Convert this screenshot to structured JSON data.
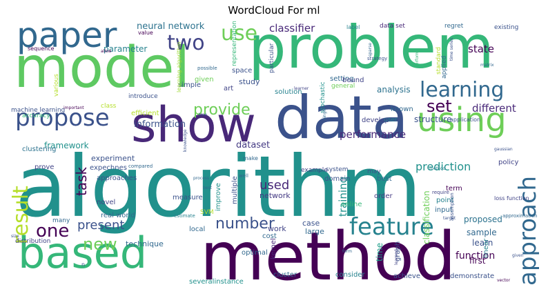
{
  "title": "WordCloud For ml",
  "words": [
    {
      "text": "algorithm",
      "color": "#21918c"
    },
    {
      "text": "method",
      "color": "#440154"
    },
    {
      "text": "model",
      "color": "#5ec962"
    },
    {
      "text": "problem",
      "color": "#35b779"
    },
    {
      "text": "data",
      "color": "#3b528b"
    },
    {
      "text": "show",
      "color": "#482878"
    },
    {
      "text": "based",
      "color": "#35b779"
    },
    {
      "text": "paper",
      "color": "#31688e"
    },
    {
      "text": "using",
      "color": "#6ece58"
    },
    {
      "text": "learning",
      "color": "#31688e"
    },
    {
      "text": "propose",
      "color": "#3b528b"
    },
    {
      "text": "feature",
      "color": "#26828e"
    },
    {
      "text": "approach",
      "color": "#31688e"
    },
    {
      "text": "result",
      "color": "#b5de2b"
    },
    {
      "text": "use",
      "color": "#6ece58"
    },
    {
      "text": "two",
      "color": "#414487"
    },
    {
      "text": "one",
      "color": "#440154"
    },
    {
      "text": "set",
      "color": "#440154"
    },
    {
      "text": "number",
      "color": "#3b528b"
    },
    {
      "text": "provide",
      "color": "#6ece58"
    },
    {
      "text": "present",
      "color": "#3b528b"
    },
    {
      "text": "new",
      "color": "#6ece58"
    },
    {
      "text": "task",
      "color": "#440154"
    },
    {
      "text": "classifier",
      "color": "#482878"
    },
    {
      "text": "state",
      "color": "#440154"
    },
    {
      "text": "different",
      "color": "#482878"
    },
    {
      "text": "performance",
      "color": "#482878"
    },
    {
      "text": "dataset",
      "color": "#443a83"
    },
    {
      "text": "prediction",
      "color": "#21918c"
    },
    {
      "text": "used",
      "color": "#482878"
    },
    {
      "text": "training",
      "color": "#21918c"
    },
    {
      "text": "neural network",
      "color": "#2c728e"
    },
    {
      "text": "framework",
      "color": "#21918c"
    },
    {
      "text": "information",
      "color": "#3b528b"
    },
    {
      "text": "parameter",
      "color": "#26828e"
    },
    {
      "text": "analysis",
      "color": "#2c728e"
    },
    {
      "text": "structure",
      "color": "#3b528b"
    },
    {
      "text": "function",
      "color": "#440154"
    },
    {
      "text": "classification",
      "color": "#6ece58"
    },
    {
      "text": "proposed",
      "color": "#2c728e"
    },
    {
      "text": "sample",
      "color": "#31688e"
    },
    {
      "text": "learn",
      "color": "#3b528b"
    },
    {
      "text": "first",
      "color": "#440154"
    },
    {
      "text": "technique",
      "color": "#31688e"
    },
    {
      "text": "time",
      "color": "#1f9e89"
    },
    {
      "text": "study",
      "color": "#3b528b"
    },
    {
      "text": "network",
      "color": "#443a83"
    },
    {
      "text": "work",
      "color": "#414487"
    },
    {
      "text": "case",
      "color": "#3b528b"
    },
    {
      "text": "large",
      "color": "#31688e"
    },
    {
      "text": "experiment",
      "color": "#3b528b"
    },
    {
      "text": "real world",
      "color": "#31688e"
    },
    {
      "text": "data set",
      "color": "#482878"
    },
    {
      "text": "regret",
      "color": "#31688e"
    },
    {
      "text": "sequence",
      "color": "#440154"
    },
    {
      "text": "label",
      "color": "#26828e"
    },
    {
      "text": "value",
      "color": "#440154"
    },
    {
      "text": "space",
      "color": "#3b528b"
    },
    {
      "text": "art",
      "color": "#414487"
    },
    {
      "text": "simple",
      "color": "#3b528b"
    },
    {
      "text": "given",
      "color": "#6ece58"
    },
    {
      "text": "introduce",
      "color": "#3b528b"
    },
    {
      "text": "setting",
      "color": "#31688e"
    },
    {
      "text": "solution",
      "color": "#26828e"
    },
    {
      "text": "bound",
      "color": "#414487"
    },
    {
      "text": "general",
      "color": "#6ece58"
    },
    {
      "text": "stochastic",
      "color": "#21918c"
    },
    {
      "text": "known",
      "color": "#31688e"
    },
    {
      "text": "develop",
      "color": "#414487"
    },
    {
      "text": "user",
      "color": "#26828e"
    },
    {
      "text": "machine learning",
      "color": "#3b528b"
    },
    {
      "text": "class",
      "color": "#b5de2b"
    },
    {
      "text": "efficient",
      "color": "#b5de2b"
    },
    {
      "text": "accuracy",
      "color": "#35b779"
    },
    {
      "text": "clustering",
      "color": "#2c728e"
    },
    {
      "text": "prove",
      "color": "#414487"
    },
    {
      "text": "expechnes",
      "color": "#3b528b"
    },
    {
      "text": "approaches",
      "color": "#3b528b"
    },
    {
      "text": "many",
      "color": "#31688e"
    },
    {
      "text": "distribution",
      "color": "#414487"
    },
    {
      "text": "novel",
      "color": "#414487"
    },
    {
      "text": "measure",
      "color": "#3b528b"
    },
    {
      "text": "improve",
      "color": "#21918c"
    },
    {
      "text": "multiple",
      "color": "#3b528b"
    },
    {
      "text": "domain",
      "color": "#3b528b"
    },
    {
      "text": "system",
      "color": "#3b528b"
    },
    {
      "text": "example",
      "color": "#414487"
    },
    {
      "text": "may",
      "color": "#3b528b"
    },
    {
      "text": "best",
      "color": "#31688e"
    },
    {
      "text": "order",
      "color": "#443a83"
    },
    {
      "text": "policy",
      "color": "#414487"
    },
    {
      "text": "point",
      "color": "#26828e"
    },
    {
      "text": "input",
      "color": "#31688e"
    },
    {
      "text": "linear",
      "color": "#26828e"
    },
    {
      "text": "term",
      "color": "#440154"
    },
    {
      "text": "optimal",
      "color": "#31688e"
    },
    {
      "text": "kernel",
      "color": "#482878"
    },
    {
      "text": "graph",
      "color": "#3b528b"
    },
    {
      "text": "local",
      "color": "#31688e"
    },
    {
      "text": "cost",
      "color": "#31688e"
    },
    {
      "text": "online",
      "color": "#35b779"
    },
    {
      "text": "cluster",
      "color": "#31688e"
    },
    {
      "text": "consider",
      "color": "#26828e"
    },
    {
      "text": "achieve",
      "color": "#3b528b"
    },
    {
      "text": "demonstrate",
      "color": "#3b528b"
    },
    {
      "text": "severalinstance",
      "color": "#21918c"
    },
    {
      "text": "existing",
      "color": "#3b528b"
    },
    {
      "text": "applied",
      "color": "#31688e"
    },
    {
      "text": "standard",
      "color": "#b5de2b"
    },
    {
      "text": "representation",
      "color": "#35b779"
    },
    {
      "text": "application",
      "color": "#3b528b"
    },
    {
      "text": "particular",
      "color": "#3b528b"
    },
    {
      "text": "various",
      "color": "#b5de2b"
    },
    {
      "text": "possible",
      "color": "#31688e"
    },
    {
      "text": "learning algorithm",
      "color": "#a0da39"
    },
    {
      "text": "compared",
      "color": "#31688e"
    },
    {
      "text": "make",
      "color": "#31688e"
    },
    {
      "text": "SVM",
      "color": "#b5de2b"
    },
    {
      "text": "loss function",
      "color": "#414487"
    },
    {
      "text": "approximation",
      "color": "#31688e"
    },
    {
      "text": "assumption",
      "color": "#3b528b"
    },
    {
      "text": "require",
      "color": "#414487"
    },
    {
      "text": "estimate",
      "color": "#26828e"
    },
    {
      "text": "strategy",
      "color": "#3b528b"
    },
    {
      "text": "important",
      "color": "#440154"
    },
    {
      "text": "tree",
      "color": "#3b528b"
    },
    {
      "text": "learner",
      "color": "#414487"
    },
    {
      "text": "target",
      "color": "#3b528b"
    },
    {
      "text": "process",
      "color": "#31688e"
    },
    {
      "text": "sparse",
      "color": "#31688e"
    },
    {
      "text": "allow",
      "color": "#440154"
    },
    {
      "text": "method",
      "color": "#26828e"
    },
    {
      "text": "matrix",
      "color": "#31688e"
    },
    {
      "text": "size",
      "color": "#3b528b"
    },
    {
      "text": "n",
      "color": "#3b528b"
    },
    {
      "text": "form",
      "color": "#31688e"
    },
    {
      "text": "gaussian",
      "color": "#3b528b"
    },
    {
      "text": "vector",
      "color": "#440154"
    },
    {
      "text": "best",
      "color": "#31688e"
    },
    {
      "text": "given",
      "color": "#3b528b"
    },
    {
      "text": "time series",
      "color": "#3b528b"
    },
    {
      "text": "perform",
      "color": "#35b779"
    },
    {
      "text": "knowledge",
      "color": "#3b528b"
    },
    {
      "text": "single",
      "color": "#31688e"
    },
    {
      "text": "well",
      "color": "#31688e"
    },
    {
      "text": "learned",
      "color": "#414487"
    }
  ]
}
